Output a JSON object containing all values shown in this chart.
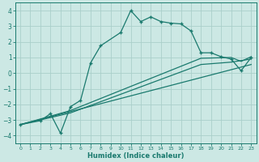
{
  "xlabel": "Humidex (Indice chaleur)",
  "xlim": [
    -0.5,
    23.5
  ],
  "ylim": [
    -4.5,
    4.5
  ],
  "xticks": [
    0,
    1,
    2,
    3,
    4,
    5,
    6,
    7,
    8,
    9,
    10,
    11,
    12,
    13,
    14,
    15,
    16,
    17,
    18,
    19,
    20,
    21,
    22,
    23
  ],
  "yticks": [
    -4,
    -3,
    -2,
    -1,
    0,
    1,
    2,
    3,
    4
  ],
  "bg_color": "#cce8e4",
  "grid_color": "#aacfca",
  "line_color": "#1a7a6e",
  "curve1_x": [
    0,
    2,
    3,
    4,
    5,
    6,
    7,
    8,
    10,
    11,
    12,
    13,
    14,
    15,
    16,
    17,
    18,
    19,
    20,
    21,
    22,
    23
  ],
  "curve1_y": [
    -3.3,
    -3.05,
    -2.6,
    -3.85,
    -2.15,
    -1.75,
    0.65,
    1.75,
    2.6,
    4.0,
    3.3,
    3.6,
    3.3,
    3.2,
    3.15,
    2.7,
    1.3,
    1.3,
    1.05,
    0.9,
    0.15,
    1.0
  ],
  "curve2_x": [
    0,
    5,
    18,
    21,
    22,
    23
  ],
  "curve2_y": [
    -3.3,
    -2.4,
    0.95,
    1.0,
    0.75,
    1.05
  ],
  "curve3_x": [
    0,
    5,
    18,
    21,
    23
  ],
  "curve3_y": [
    -3.3,
    -2.55,
    0.55,
    0.7,
    0.9
  ],
  "curve4_x": [
    0,
    23
  ],
  "curve4_y": [
    -3.3,
    0.55
  ]
}
